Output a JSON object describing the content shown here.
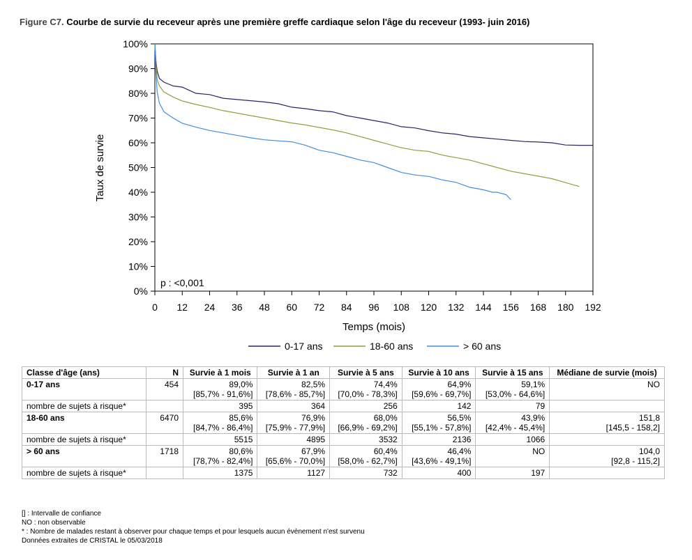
{
  "figure": {
    "label": "Figure C7.",
    "title": "Courbe de survie du receveur après une première greffe cardiaque selon l'âge du receveur (1993- juin 2016)"
  },
  "chart_data": {
    "type": "line",
    "xlabel": "Temps (mois)",
    "ylabel": "Taux de survie",
    "xlim": [
      0,
      192
    ],
    "ylim": [
      0,
      100
    ],
    "x_ticks": [
      "0",
      "12",
      "24",
      "36",
      "48",
      "60",
      "72",
      "84",
      "96",
      "108",
      "120",
      "132",
      "144",
      "156",
      "168",
      "180",
      "192"
    ],
    "y_ticks": [
      "0%",
      "10%",
      "20%",
      "30%",
      "40%",
      "50%",
      "60%",
      "70%",
      "80%",
      "90%",
      "100%"
    ],
    "grid": false,
    "legend_position": "bottom",
    "annotation": "p : <0,001",
    "series": [
      {
        "name": "0-17 ans",
        "color": "#2b2266",
        "points": [
          [
            0,
            100
          ],
          [
            0.5,
            93
          ],
          [
            1,
            89
          ],
          [
            2,
            86
          ],
          [
            4,
            84.5
          ],
          [
            8,
            83
          ],
          [
            12,
            82.5
          ],
          [
            18,
            80
          ],
          [
            24,
            79.5
          ],
          [
            30,
            78
          ],
          [
            36,
            77.5
          ],
          [
            42,
            77
          ],
          [
            48,
            76.5
          ],
          [
            54,
            75.8
          ],
          [
            60,
            74.4
          ],
          [
            66,
            73.8
          ],
          [
            72,
            73
          ],
          [
            78,
            72.5
          ],
          [
            84,
            71
          ],
          [
            90,
            70
          ],
          [
            96,
            69
          ],
          [
            102,
            68
          ],
          [
            108,
            66.5
          ],
          [
            114,
            66
          ],
          [
            120,
            64.9
          ],
          [
            126,
            64
          ],
          [
            132,
            63.5
          ],
          [
            138,
            62.5
          ],
          [
            144,
            62
          ],
          [
            150,
            61.5
          ],
          [
            156,
            61
          ],
          [
            162,
            60.5
          ],
          [
            168,
            60.3
          ],
          [
            174,
            60
          ],
          [
            180,
            59.1
          ],
          [
            186,
            59
          ],
          [
            192,
            59
          ]
        ]
      },
      {
        "name": "18-60 ans",
        "color": "#8aa23a",
        "points": [
          [
            0,
            100
          ],
          [
            0.5,
            92
          ],
          [
            1,
            85.6
          ],
          [
            2,
            83
          ],
          [
            4,
            80.5
          ],
          [
            8,
            78.5
          ],
          [
            12,
            76.9
          ],
          [
            18,
            75.5
          ],
          [
            24,
            74.3
          ],
          [
            30,
            73
          ],
          [
            36,
            72
          ],
          [
            42,
            71
          ],
          [
            48,
            70
          ],
          [
            54,
            69
          ],
          [
            60,
            68
          ],
          [
            66,
            67.2
          ],
          [
            72,
            66.2
          ],
          [
            78,
            65.2
          ],
          [
            84,
            64
          ],
          [
            90,
            62.5
          ],
          [
            96,
            61
          ],
          [
            102,
            59.5
          ],
          [
            108,
            58
          ],
          [
            114,
            57
          ],
          [
            120,
            56.5
          ],
          [
            126,
            55
          ],
          [
            132,
            54
          ],
          [
            138,
            53
          ],
          [
            144,
            51.5
          ],
          [
            150,
            50
          ],
          [
            156,
            48.5
          ],
          [
            162,
            47.5
          ],
          [
            168,
            46.5
          ],
          [
            174,
            45.5
          ],
          [
            180,
            43.9
          ],
          [
            186,
            42.3
          ]
        ]
      },
      {
        "name": "> 60 ans",
        "color": "#3f8fe0",
        "points": [
          [
            0,
            100
          ],
          [
            0.5,
            88
          ],
          [
            1,
            80.6
          ],
          [
            2,
            76
          ],
          [
            4,
            72.5
          ],
          [
            8,
            70
          ],
          [
            12,
            67.9
          ],
          [
            18,
            66.3
          ],
          [
            24,
            65
          ],
          [
            30,
            64
          ],
          [
            36,
            63
          ],
          [
            42,
            62
          ],
          [
            48,
            61.2
          ],
          [
            54,
            60.8
          ],
          [
            60,
            60.4
          ],
          [
            66,
            59
          ],
          [
            72,
            57
          ],
          [
            78,
            56
          ],
          [
            84,
            54.5
          ],
          [
            90,
            53
          ],
          [
            96,
            52
          ],
          [
            102,
            50
          ],
          [
            108,
            48
          ],
          [
            114,
            47
          ],
          [
            120,
            46.4
          ],
          [
            126,
            45
          ],
          [
            132,
            44
          ],
          [
            138,
            42
          ],
          [
            144,
            41
          ],
          [
            148,
            40
          ],
          [
            150,
            40
          ],
          [
            154,
            39
          ],
          [
            156,
            37
          ]
        ]
      }
    ]
  },
  "table": {
    "headers": {
      "class": "Classe d'âge (ans)",
      "n": "N",
      "m1": "Survie à 1 mois",
      "y1": "Survie à 1 an",
      "y5": "Survie à 5 ans",
      "y10": "Survie à 10 ans",
      "y15": "Survie à 15 ans",
      "median": "Médiane de survie (mois)"
    },
    "groups": [
      {
        "label": "0-17 ans",
        "n": "454",
        "values": [
          "89,0%",
          "82,5%",
          "74,4%",
          "64,9%",
          "59,1%",
          "NO"
        ],
        "ci": [
          "[85,7% - 91,6%]",
          "[78,6% - 85,7%]",
          "[70,0% - 78,3%]",
          "[59,6% - 69,7%]",
          "[53,0% - 64,6%]",
          ""
        ],
        "risk_label": "nombre de sujets à risque*",
        "risk": [
          "395",
          "364",
          "256",
          "142",
          "79",
          ""
        ]
      },
      {
        "label": "18-60 ans",
        "n": "6470",
        "values": [
          "85,6%",
          "76,9%",
          "68,0%",
          "56,5%",
          "43,9%",
          "151,8"
        ],
        "ci": [
          "[84,7% - 86,4%]",
          "[75,9% - 77,9%]",
          "[66,9% - 69,2%]",
          "[55,1% - 57,8%]",
          "[42,4% - 45,4%]",
          "[145,5 - 158,2]"
        ],
        "risk_label": "nombre de sujets à risque*",
        "risk": [
          "5515",
          "4895",
          "3532",
          "2136",
          "1066",
          ""
        ]
      },
      {
        "label": "> 60 ans",
        "n": "1718",
        "values": [
          "80,6%",
          "67,9%",
          "60,4%",
          "46,4%",
          "NO",
          "104,0"
        ],
        "ci": [
          "[78,7% - 82,4%]",
          "[65,6% - 70,0%]",
          "[58,0% - 62,7%]",
          "[43,6% - 49,1%]",
          "",
          "[92,8 - 115,2]"
        ],
        "risk_label": "nombre de sujets à risque*",
        "risk": [
          "1375",
          "1127",
          "732",
          "400",
          "197",
          ""
        ]
      }
    ]
  },
  "footnotes": [
    "[] : Intervalle de confiance",
    "NO : non observable",
    "* : Nombre de malades restant à observer pour chaque temps et pour lesquels aucun évènement n'est survenu",
    "Données extraites de CRISTAL le 05/03/2018"
  ]
}
